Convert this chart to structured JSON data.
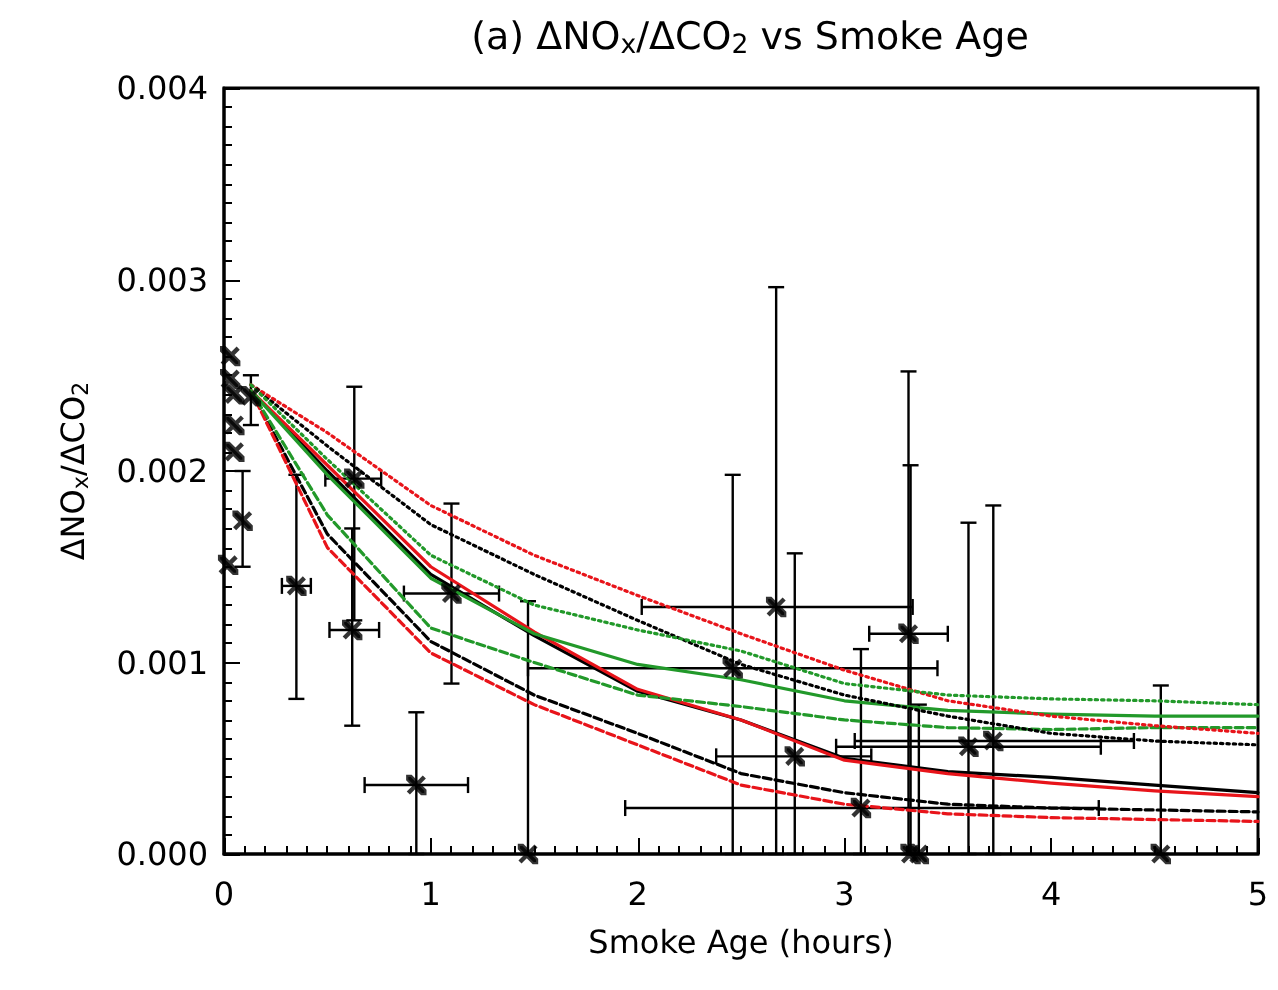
{
  "chart_data": {
    "type": "line",
    "title": "(a) ΔNO$_{x}$/ΔCO$_{2}$ vs Smoke Age",
    "xlabel": "Smoke Age (hours)",
    "ylabel": "ΔNO$_{x}$/ΔCO$_{2}$",
    "xlim": [
      0,
      5
    ],
    "xticks": [
      0,
      1,
      2,
      3,
      4,
      5
    ],
    "ylim": [
      0,
      0.004
    ],
    "yticks": [
      {
        "value": 0,
        "label": "0.000"
      },
      {
        "value": 0.001,
        "label": "0.001"
      },
      {
        "value": 0.002,
        "label": "0.002"
      },
      {
        "value": 0.003,
        "label": "0.003"
      },
      {
        "value": 0.004,
        "label": "0.004"
      }
    ],
    "grid": false,
    "series": [
      {
        "type": "scatter",
        "color": "#000000",
        "marker": "cross",
        "x": [
          0.03,
          0.03,
          0.05,
          0.05,
          0.05,
          0.09,
          0.02,
          0.13,
          0.35,
          0.63,
          0.62,
          0.93,
          1.1,
          1.47,
          2.46,
          2.67,
          2.76,
          3.08,
          3.31,
          3.32,
          3.36,
          3.6,
          3.72,
          4.53
        ],
        "values": [
          0.0026,
          0.00248,
          0.0024,
          0.00224,
          0.0021,
          0.00174,
          0.00151,
          0.00239,
          0.0014,
          0.00196,
          0.00117,
          0.00036,
          0.00136,
          0,
          0.00097,
          0.00129,
          0.00051,
          0.00024,
          0.00115,
          0,
          0,
          0.00056,
          0.00059,
          0
        ],
        "errors": [
          null,
          null,
          null,
          null,
          null,
          [
            0.0015,
            0.002
          ],
          null,
          [
            0.00224,
            0.0025
          ],
          [
            0.00081,
            0.00198
          ],
          [
            0.00122,
            0.00244
          ],
          [
            0.00067,
            0.0017
          ],
          [
            0,
            0.00074
          ],
          [
            0.00089,
            0.00183
          ],
          [
            0,
            0.00132
          ],
          [
            0,
            0.00198
          ],
          [
            0,
            0.00296
          ],
          [
            0,
            0.00157
          ],
          [
            0,
            0.00107
          ],
          [
            0,
            0.00252
          ],
          [
            0,
            0.00203
          ],
          [
            0,
            0.00078
          ],
          [
            0,
            0.00173
          ],
          [
            0,
            0.00182
          ],
          [
            0,
            0.00088
          ]
        ],
        "xerrors": [
          null,
          null,
          null,
          null,
          null,
          null,
          null,
          null,
          [
            0.28,
            0.42
          ],
          [
            0.49,
            0.76
          ],
          [
            0.51,
            0.75
          ],
          [
            0.68,
            1.18
          ],
          [
            0.87,
            1.33
          ],
          null,
          [
            1.47,
            3.45
          ],
          [
            2.02,
            3.33
          ],
          [
            2.38,
            3.13
          ],
          [
            1.94,
            4.23
          ],
          [
            3.12,
            3.5
          ],
          null,
          null,
          [
            2.96,
            4.24
          ],
          [
            3.05,
            4.4
          ],
          null
        ]
      },
      {
        "color": "#000000",
        "line_style": "solid",
        "marker": "none",
        "x": [
          0.13,
          0.5,
          1,
          1.5,
          2,
          2.5,
          3,
          3.5,
          4,
          4.5,
          5
        ],
        "values": [
          0.00242,
          0.002,
          0.00146,
          0.00114,
          0.00085,
          0.0007,
          0.0005,
          0.00043,
          0.0004,
          0.00036,
          0.00032
        ]
      },
      {
        "color": "#e8141a",
        "line_style": "solid",
        "marker": "none",
        "x": [
          0.13,
          0.5,
          1,
          1.5,
          2,
          2.5,
          3,
          3.5,
          4,
          4.5,
          5
        ],
        "values": [
          0.00242,
          0.00203,
          0.0015,
          0.00116,
          0.00086,
          0.0007,
          0.00049,
          0.00042,
          0.00037,
          0.00033,
          0.0003
        ]
      },
      {
        "color": "#22992a",
        "line_style": "solid",
        "marker": "none",
        "x": [
          0.13,
          0.5,
          1,
          1.5,
          2,
          2.5,
          3,
          3.5,
          4,
          4.5,
          5
        ],
        "values": [
          0.00242,
          0.00198,
          0.00144,
          0.00115,
          0.00099,
          0.00091,
          0.0008,
          0.00075,
          0.00073,
          0.00072,
          0.00072
        ]
      },
      {
        "color": "#000000",
        "line_style": "dashed",
        "marker": "none",
        "x": [
          0.13,
          0.5,
          1,
          1.5,
          2,
          2.5,
          3,
          3.5,
          4,
          4.5,
          5
        ],
        "values": [
          0.00242,
          0.00167,
          0.00111,
          0.00083,
          0.00063,
          0.00042,
          0.00032,
          0.00026,
          0.00024,
          0.00023,
          0.00022
        ]
      },
      {
        "color": "#e8141a",
        "line_style": "dashed",
        "marker": "none",
        "x": [
          0.13,
          0.5,
          1,
          1.5,
          2,
          2.5,
          3,
          3.5,
          4,
          4.5,
          5
        ],
        "values": [
          0.00242,
          0.0016,
          0.00105,
          0.00078,
          0.00057,
          0.00036,
          0.00026,
          0.00021,
          0.00019,
          0.00018,
          0.00017
        ]
      },
      {
        "color": "#22992a",
        "line_style": "dashed",
        "marker": "none",
        "x": [
          0.13,
          0.5,
          1,
          1.5,
          2,
          2.5,
          3,
          3.5,
          4,
          4.5,
          5
        ],
        "values": [
          0.00242,
          0.00177,
          0.00118,
          0.001,
          0.00083,
          0.00077,
          0.0007,
          0.00066,
          0.00065,
          0.00066,
          0.00066
        ]
      },
      {
        "color": "#000000",
        "line_style": "dotted",
        "marker": "none",
        "x": [
          0.13,
          0.5,
          1,
          1.5,
          2,
          2.5,
          3,
          3.5,
          4,
          4.5,
          5
        ],
        "values": [
          0.00245,
          0.00213,
          0.00172,
          0.00146,
          0.00122,
          0.00099,
          0.00083,
          0.00072,
          0.00063,
          0.00059,
          0.00057
        ]
      },
      {
        "color": "#e8141a",
        "line_style": "dotted",
        "marker": "none",
        "x": [
          0.13,
          0.5,
          1,
          1.5,
          2,
          2.5,
          3,
          3.5,
          4,
          4.5,
          5
        ],
        "values": [
          0.00245,
          0.0022,
          0.00182,
          0.00156,
          0.00135,
          0.00115,
          0.00096,
          0.0008,
          0.00072,
          0.00067,
          0.00063
        ]
      },
      {
        "color": "#22992a",
        "line_style": "dotted",
        "marker": "none",
        "x": [
          0.13,
          0.5,
          1,
          1.5,
          2,
          2.5,
          3,
          3.5,
          4,
          4.5,
          5
        ],
        "values": [
          0.00245,
          0.00206,
          0.00156,
          0.0013,
          0.00117,
          0.00106,
          0.00089,
          0.00083,
          0.00081,
          0.0008,
          0.00078
        ]
      }
    ]
  }
}
